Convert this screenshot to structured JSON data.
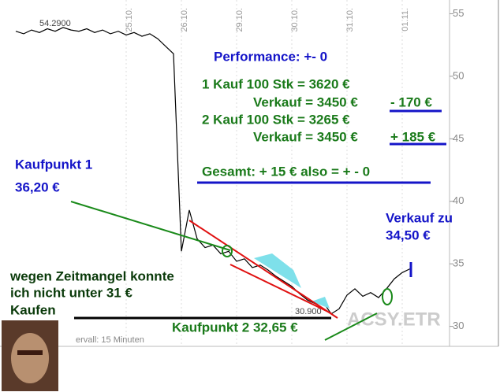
{
  "chart_data": {
    "type": "line",
    "categories": [
      null,
      null,
      null,
      null,
      null,
      null,
      null,
      null,
      null,
      null,
      null,
      null,
      null,
      null,
      "25.10.",
      null,
      null,
      null,
      null,
      null,
      null,
      "26.10.",
      null,
      null,
      null,
      null,
      null,
      null,
      "29.10.",
      null,
      null,
      null,
      null,
      null,
      null,
      "30.10.",
      null,
      null,
      null,
      null,
      null,
      null,
      "31.10.",
      null,
      null,
      null,
      null,
      null,
      null,
      "01.11.",
      null
    ],
    "values": [
      53.6,
      53.4,
      53.7,
      53.5,
      53.8,
      53.6,
      53.9,
      53.7,
      53.6,
      53.8,
      53.5,
      53.7,
      53.4,
      53.6,
      53.3,
      53.5,
      53.2,
      53.4,
      53.0,
      52.4,
      51.8,
      36.0,
      39.3,
      37.0,
      36.3,
      36.5,
      35.8,
      36.0,
      35.2,
      35.4,
      34.7,
      34.9,
      34.5,
      34.0,
      33.6,
      33.2,
      32.6,
      32.1,
      31.8,
      31.9,
      31.0,
      31.4,
      32.5,
      33.0,
      32.4,
      32.7,
      32.3,
      33.0,
      33.8,
      34.3,
      34.6
    ],
    "color": "#000000",
    "ylim": [
      28.4,
      56.1
    ],
    "yticks": [
      30,
      35,
      40,
      45,
      50,
      55
    ],
    "grid": true,
    "annotations": {
      "high": "54.2900",
      "low": "30.900",
      "performance": "Performance: +- 0",
      "buy1": "1 Kauf 100 Stk = 3620 €",
      "sell1": "Verkauf = 3450 €",
      "diff1": "- 170 €",
      "buy2": "2 Kauf 100 Stk = 3265 €",
      "sell2": "Verkauf = 3450 €",
      "diff2": "+ 185 €",
      "total": "Gesamt:  + 15 €  also = + - 0",
      "kp1": "Kaufpunkt 1",
      "kp1_price": "36,20 €",
      "sell_to": "Verkauf zu",
      "sell_price": "34,50 €",
      "note1": "wegen Zeitmangel konnte",
      "note2": "ich nicht unter 31 €",
      "note3": "Kaufen",
      "kp2": "Kaufpunkt 2  32,65 €",
      "watermark": "ACSY.ETR",
      "interval": "ervall: 15 Minuten"
    }
  }
}
